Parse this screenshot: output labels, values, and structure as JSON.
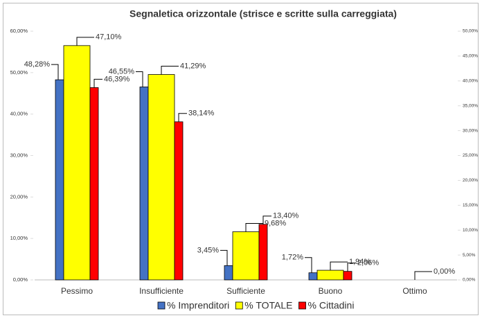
{
  "chart_data": {
    "type": "bar",
    "title": "Segnaletica orizzontale (strisce e scritte sulla carreggiata)",
    "categories": [
      "Pessimo",
      "Insufficiente",
      "Sufficiente",
      "Buono",
      "Ottimo"
    ],
    "series": [
      {
        "name": "% Imprenditori",
        "color": "#4472c4",
        "values": [
          48.28,
          46.55,
          3.45,
          1.72,
          null
        ],
        "value_labels": [
          "48,28%",
          "46,55%",
          "3,45%",
          "1,72%",
          null
        ]
      },
      {
        "name": "% TOTALE",
        "color": "#ffff00",
        "axis": "y2",
        "values": [
          47.1,
          41.29,
          9.68,
          1.94,
          0
        ],
        "value_labels": [
          "47,10%",
          "41,29%",
          "9,68%",
          "1,94%",
          "0,00%"
        ]
      },
      {
        "name": "% Cittadini",
        "color": "#ff0000",
        "values": [
          46.39,
          38.14,
          13.4,
          2.06,
          null
        ],
        "value_labels": [
          "46,39%",
          "38,14%",
          "13,40%",
          "2,06%",
          null
        ]
      }
    ],
    "ylim": [
      0,
      60
    ],
    "yticks": [
      {
        "value": 0,
        "label": "0,00%"
      },
      {
        "value": 10,
        "label": "10,00%"
      },
      {
        "value": 20,
        "label": "20,00%"
      },
      {
        "value": 30,
        "label": "30,00%"
      },
      {
        "value": 40,
        "label": "40,00%"
      },
      {
        "value": 50,
        "label": "50,00%"
      },
      {
        "value": 60,
        "label": "60,00%"
      }
    ],
    "y2lim": [
      0,
      50
    ],
    "y2ticks": [
      {
        "value": 0,
        "label": "0,00%"
      },
      {
        "value": 5,
        "label": "5,00%"
      },
      {
        "value": 10,
        "label": "10,00%"
      },
      {
        "value": 15,
        "label": "15,00%"
      },
      {
        "value": 20,
        "label": "20,00%"
      },
      {
        "value": 25,
        "label": "25,00%"
      },
      {
        "value": 30,
        "label": "30,00%"
      },
      {
        "value": 35,
        "label": "35,00%"
      },
      {
        "value": 40,
        "label": "40,00%"
      },
      {
        "value": 45,
        "label": "45,00%"
      },
      {
        "value": 50,
        "label": "50,00%"
      }
    ],
    "legend": "bottom"
  }
}
